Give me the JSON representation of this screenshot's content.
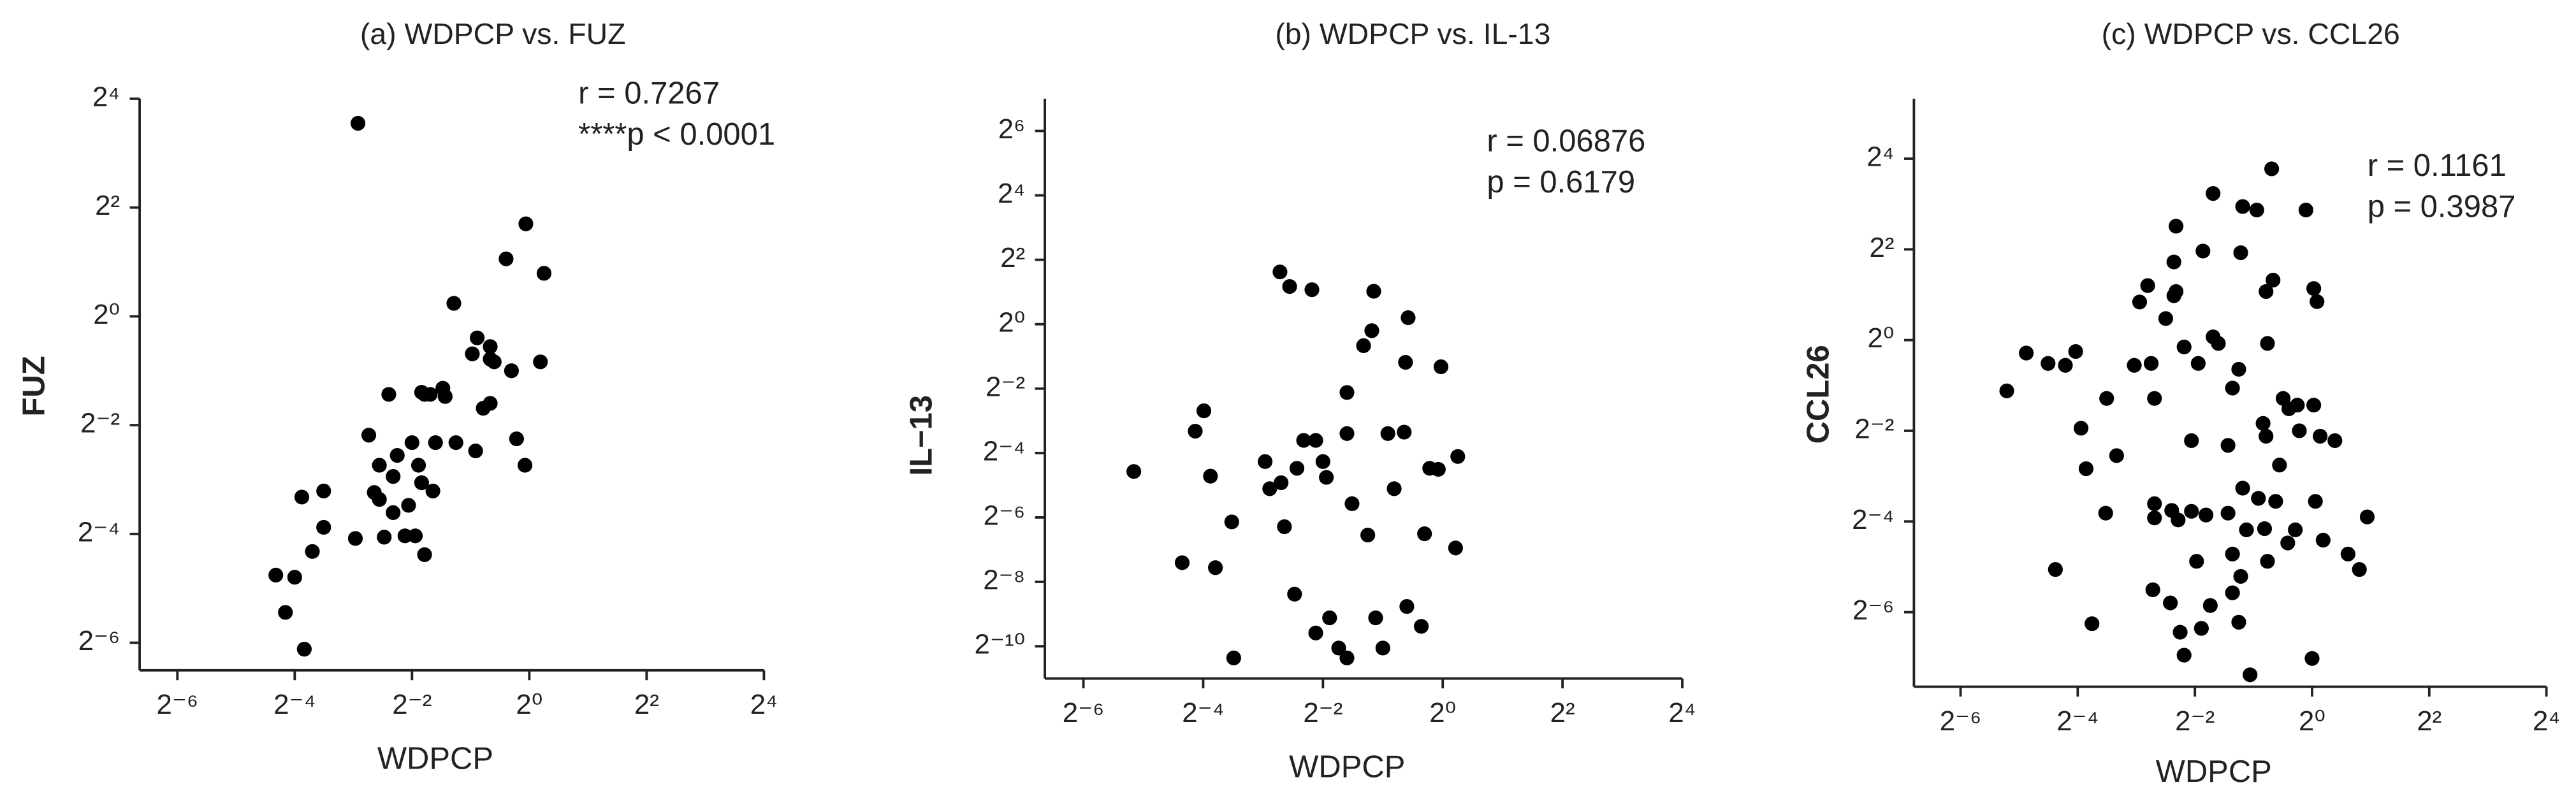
{
  "chart_data": [
    {
      "type": "scatter",
      "title": "(a) WDPCP vs. FUZ",
      "xlabel": "WDPCP",
      "ylabel": "FUZ",
      "annotations": [
        "r = 0.7267",
        "****p < 0.0001"
      ],
      "xscale": "log2",
      "yscale": "log2",
      "color": "#000000",
      "xlim": [
        0.01,
        16
      ],
      "ylim": [
        0.011,
        16
      ],
      "xticks": [
        {
          "value": 0.015625,
          "label": "2⁻⁶"
        },
        {
          "value": 0.0625,
          "label": "2⁻⁴"
        },
        {
          "value": 0.25,
          "label": "2⁻²"
        },
        {
          "value": 1,
          "label": "2⁰"
        },
        {
          "value": 4,
          "label": "2²"
        },
        {
          "value": 16,
          "label": "2⁴"
        }
      ],
      "yticks": [
        {
          "value": 0.015625,
          "label": "2⁻⁶"
        },
        {
          "value": 0.0625,
          "label": "2⁻⁴"
        },
        {
          "value": 0.25,
          "label": "2⁻²"
        },
        {
          "value": 1,
          "label": "2⁰"
        },
        {
          "value": 4,
          "label": "2²"
        },
        {
          "value": 16,
          "label": "2⁴"
        }
      ],
      "x": [
        0.132,
        0.96,
        0.76,
        1.19,
        0.41,
        0.54,
        0.51,
        0.63,
        0.66,
        0.81,
        1.14,
        0.63,
        0.58,
        0.36,
        0.28,
        0.31,
        0.19,
        0.37,
        0.15,
        0.86,
        0.95,
        0.42,
        0.33,
        0.25,
        0.53,
        0.21,
        0.17,
        0.27,
        0.2,
        0.28,
        0.16,
        0.17,
        0.24,
        0.32,
        0.068,
        0.088,
        0.088,
        0.128,
        0.18,
        0.23,
        0.26,
        0.29,
        0.2,
        0.077,
        0.05,
        0.0625,
        0.056,
        0.07,
        0.63,
        0.29
      ],
      "y": [
        11.7,
        3.25,
        2.08,
        1.73,
        1.18,
        0.76,
        0.62,
        0.68,
        0.56,
        0.5,
        0.56,
        0.33,
        0.31,
        0.4,
        0.38,
        0.37,
        0.37,
        0.36,
        0.22,
        0.21,
        0.15,
        0.2,
        0.2,
        0.2,
        0.18,
        0.17,
        0.15,
        0.15,
        0.13,
        0.12,
        0.106,
        0.097,
        0.09,
        0.108,
        0.1,
        0.108,
        0.068,
        0.059,
        0.06,
        0.061,
        0.061,
        0.048,
        0.082,
        0.05,
        0.037,
        0.036,
        0.023,
        0.0144,
        0.58,
        0.37
      ]
    },
    {
      "type": "scatter",
      "title": "(b) WDPCP vs. IL-13",
      "xlabel": "WDPCP",
      "ylabel": "IL−13",
      "annotations": [
        "r = 0.06876",
        "p = 0.6179"
      ],
      "xscale": "log2",
      "yscale": "log2",
      "color": "#000000",
      "xlim": [
        0.01,
        16
      ],
      "ylim": [
        0.000488,
        128
      ],
      "xticks": [
        {
          "value": 0.015625,
          "label": "2⁻⁶"
        },
        {
          "value": 0.0625,
          "label": "2⁻⁴"
        },
        {
          "value": 0.25,
          "label": "2⁻²"
        },
        {
          "value": 1,
          "label": "2⁰"
        },
        {
          "value": 4,
          "label": "2²"
        },
        {
          "value": 16,
          "label": "2⁴"
        }
      ],
      "yticks": [
        {
          "value": 0.0009765625,
          "label": "2⁻¹⁰"
        },
        {
          "value": 0.00390625,
          "label": "2⁻⁸"
        },
        {
          "value": 0.015625,
          "label": "2⁻⁶"
        },
        {
          "value": 0.0625,
          "label": "2⁻⁴"
        },
        {
          "value": 0.25,
          "label": "2⁻²"
        },
        {
          "value": 1,
          "label": "2⁰"
        },
        {
          "value": 4,
          "label": "2²"
        },
        {
          "value": 16,
          "label": "2⁴"
        },
        {
          "value": 64,
          "label": "2⁶"
        }
      ],
      "x": [
        0.152,
        0.17,
        0.22,
        0.45,
        0.67,
        0.44,
        0.4,
        0.65,
        0.98,
        0.33,
        0.063,
        0.057,
        0.2,
        0.23,
        0.33,
        0.53,
        0.64,
        1.19,
        0.86,
        0.95,
        0.128,
        0.185,
        0.25,
        0.26,
        0.154,
        0.135,
        0.028,
        0.068,
        0.57,
        0.35,
        0.087,
        0.16,
        0.42,
        0.81,
        1.16,
        0.049,
        0.072,
        0.18,
        0.66,
        0.46,
        0.78,
        0.27,
        0.23,
        0.3,
        0.33,
        0.5,
        0.089
      ],
      "y": [
        3.08,
        2.25,
        2.1,
        2.03,
        1.15,
        0.87,
        0.63,
        0.44,
        0.4,
        0.23,
        0.155,
        0.1,
        0.082,
        0.082,
        0.095,
        0.095,
        0.098,
        0.058,
        0.045,
        0.044,
        0.052,
        0.045,
        0.052,
        0.037,
        0.033,
        0.029,
        0.042,
        0.038,
        0.029,
        0.021,
        0.0142,
        0.0128,
        0.0107,
        0.011,
        0.0081,
        0.0059,
        0.0053,
        0.003,
        0.0023,
        0.0018,
        0.0015,
        0.0018,
        0.0013,
        0.00094,
        0.00076,
        0.00094,
        0.00076
      ]
    },
    {
      "type": "scatter",
      "title": "(c) WDPCP vs. CCL26",
      "xlabel": "WDPCP",
      "ylabel": "CCL26",
      "annotations": [
        "r = 0.1161",
        "p = 0.3987"
      ],
      "xscale": "log2",
      "yscale": "log2",
      "color": "#000000",
      "xlim": [
        0.009,
        16
      ],
      "ylim": [
        0.005,
        40
      ],
      "xticks": [
        {
          "value": 0.015625,
          "label": "2⁻⁶"
        },
        {
          "value": 0.0625,
          "label": "2⁻⁴"
        },
        {
          "value": 0.25,
          "label": "2⁻²"
        },
        {
          "value": 1,
          "label": "2⁰"
        },
        {
          "value": 4,
          "label": "2²"
        },
        {
          "value": 16,
          "label": "2⁴"
        }
      ],
      "yticks": [
        {
          "value": 0.015625,
          "label": "2⁻⁶"
        },
        {
          "value": 0.0625,
          "label": "2⁻⁴"
        },
        {
          "value": 0.25,
          "label": "2⁻²"
        },
        {
          "value": 1,
          "label": "2⁰"
        },
        {
          "value": 4,
          "label": "2²"
        },
        {
          "value": 16,
          "label": "2⁴"
        }
      ],
      "x": [
        0.62,
        0.31,
        0.44,
        0.52,
        0.93,
        0.2,
        0.43,
        0.275,
        0.195,
        0.63,
        0.58,
        1.02,
        1.06,
        0.143,
        0.2,
        0.195,
        0.13,
        0.177,
        0.31,
        0.33,
        0.22,
        0.59,
        0.26,
        0.149,
        0.122,
        0.42,
        0.39,
        0.034,
        0.044,
        0.054,
        0.061,
        0.027,
        0.088,
        0.155,
        0.71,
        0.84,
        1.02,
        0.76,
        0.56,
        0.86,
        1.1,
        1.31,
        0.065,
        0.24,
        0.37,
        0.58,
        0.099,
        0.069,
        0.68,
        0.44,
        0.53,
        0.65,
        1.04,
        0.19,
        0.24,
        0.285,
        0.37,
        0.57,
        0.82,
        0.46,
        0.087,
        0.155,
        0.205,
        1.92,
        0.75,
        1.14,
        1.53,
        1.75,
        0.39,
        0.59,
        0.43,
        0.255,
        0.048,
        0.152,
        0.187,
        0.39,
        0.3,
        0.27,
        0.21,
        0.42,
        0.074,
        0.22,
        1.0,
        0.48,
        0.155
      ],
      "y": [
        13.7,
        9.4,
        7.7,
        7.3,
        7.3,
        5.7,
        3.8,
        3.9,
        3.3,
        2.5,
        2.1,
        2.2,
        1.8,
        2.3,
        2.1,
        1.97,
        1.79,
        1.39,
        1.05,
        0.95,
        0.9,
        0.95,
        0.7,
        0.7,
        0.68,
        0.64,
        0.48,
        0.82,
        0.7,
        0.68,
        0.84,
        0.46,
        0.41,
        0.41,
        0.41,
        0.37,
        0.37,
        0.35,
        0.28,
        0.25,
        0.23,
        0.215,
        0.26,
        0.215,
        0.2,
        0.23,
        0.171,
        0.14,
        0.148,
        0.104,
        0.089,
        0.085,
        0.085,
        0.074,
        0.073,
        0.069,
        0.071,
        0.056,
        0.055,
        0.055,
        0.071,
        0.066,
        0.064,
        0.067,
        0.045,
        0.047,
        0.038,
        0.03,
        0.038,
        0.034,
        0.027,
        0.034,
        0.03,
        0.022,
        0.018,
        0.021,
        0.0173,
        0.0122,
        0.0115,
        0.0134,
        0.0131,
        0.0081,
        0.0077,
        0.006,
        0.082
      ]
    }
  ]
}
